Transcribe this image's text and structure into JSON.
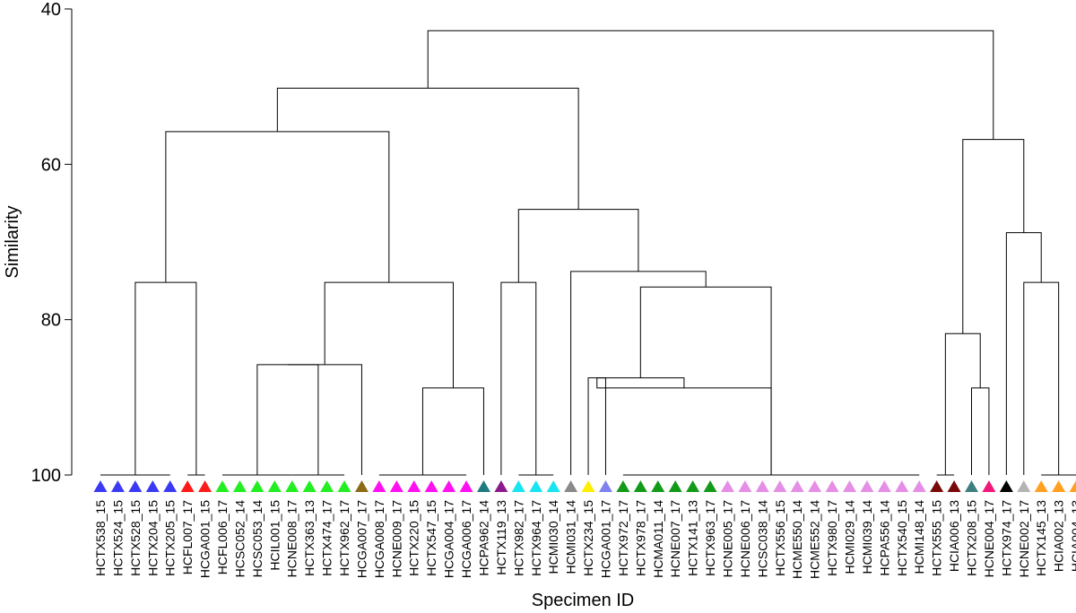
{
  "chart_data": {
    "type": "dendrogram",
    "ylabel": "Similarity",
    "xlabel": "Specimen ID",
    "ylim": [
      40,
      100
    ],
    "yticks": [
      40,
      60,
      80,
      100
    ],
    "y_inverted": true,
    "leaves": [
      {
        "label": "HCTX538_15",
        "color": "#3a3af5"
      },
      {
        "label": "HCTX524_15",
        "color": "#3a3af5"
      },
      {
        "label": "HCTX528_15",
        "color": "#3a3af5"
      },
      {
        "label": "HCTX204_15",
        "color": "#3a3af5"
      },
      {
        "label": "HCTX205_15",
        "color": "#3a3af5"
      },
      {
        "label": "HCFL007_17",
        "color": "#ff1a1a"
      },
      {
        "label": "HCGA001_15",
        "color": "#ff1a1a"
      },
      {
        "label": "HCFL006_17",
        "color": "#22ee22"
      },
      {
        "label": "HCSC052_14",
        "color": "#22ee22"
      },
      {
        "label": "HCSC053_14",
        "color": "#22ee22"
      },
      {
        "label": "HCIL001_15",
        "color": "#22ee22"
      },
      {
        "label": "HCNE008_17",
        "color": "#22ee22"
      },
      {
        "label": "HCTX363_13",
        "color": "#22ee22"
      },
      {
        "label": "HCTX474_17",
        "color": "#22ee22"
      },
      {
        "label": "HCTX962_17",
        "color": "#22ee22"
      },
      {
        "label": "HCGA007_17",
        "color": "#8b6b14"
      },
      {
        "label": "HCGA008_17",
        "color": "#ff10f0"
      },
      {
        "label": "HCNE009_17",
        "color": "#ff10f0"
      },
      {
        "label": "HCTX220_15",
        "color": "#ff10f0"
      },
      {
        "label": "HCTX547_15",
        "color": "#ff10f0"
      },
      {
        "label": "HCGA004_17",
        "color": "#ff10f0"
      },
      {
        "label": "HCGA006_17",
        "color": "#ff10f0"
      },
      {
        "label": "HCPA962_14",
        "color": "#1f7a80"
      },
      {
        "label": "HCTX119_13",
        "color": "#8b1a8b"
      },
      {
        "label": "HCTX982_17",
        "color": "#19e5f0"
      },
      {
        "label": "HCTX964_17",
        "color": "#19e5f0"
      },
      {
        "label": "HCMI030_14",
        "color": "#19e5f0"
      },
      {
        "label": "HCMI031_14",
        "color": "#8a8a8a"
      },
      {
        "label": "HCTX234_15",
        "color": "#ffee00"
      },
      {
        "label": "HCGA001_17",
        "color": "#8080ee"
      },
      {
        "label": "HCTX972_17",
        "color": "#139a19"
      },
      {
        "label": "HCTX978_17",
        "color": "#139a19"
      },
      {
        "label": "HCMA011_14",
        "color": "#139a19"
      },
      {
        "label": "HCNE007_17",
        "color": "#139a19"
      },
      {
        "label": "HCTX141_13",
        "color": "#139a19"
      },
      {
        "label": "HCTX963_17",
        "color": "#139a19"
      },
      {
        "label": "HCNE005_17",
        "color": "#e58ee5"
      },
      {
        "label": "HCNE006_17",
        "color": "#e58ee5"
      },
      {
        "label": "HCSC038_14",
        "color": "#e58ee5"
      },
      {
        "label": "HCTX556_15",
        "color": "#e58ee5"
      },
      {
        "label": "HCME550_14",
        "color": "#e58ee5"
      },
      {
        "label": "HCME552_14",
        "color": "#e58ee5"
      },
      {
        "label": "HCTX980_17",
        "color": "#e58ee5"
      },
      {
        "label": "HCMI029_14",
        "color": "#e58ee5"
      },
      {
        "label": "HCMI039_14",
        "color": "#e58ee5"
      },
      {
        "label": "HCPA556_14",
        "color": "#e58ee5"
      },
      {
        "label": "HCTX540_15",
        "color": "#e58ee5"
      },
      {
        "label": "HCMI148_14",
        "color": "#e58ee5"
      },
      {
        "label": "HCTX555_15",
        "color": "#7a0a0a"
      },
      {
        "label": "HCIA006_13",
        "color": "#7a0a0a"
      },
      {
        "label": "HCTX208_15",
        "color": "#3d7f80"
      },
      {
        "label": "HCNE004_17",
        "color": "#f0187a"
      },
      {
        "label": "HCTX974_17",
        "color": "#000000"
      },
      {
        "label": "HCNE002_17",
        "color": "#b4b4b4"
      },
      {
        "label": "HCTX145_13",
        "color": "#ffa020"
      },
      {
        "label": "HCIA002_13",
        "color": "#ffa020"
      },
      {
        "label": "HCIA004_13",
        "color": "#ffa020"
      }
    ],
    "clusters": [
      {
        "leaves": [
          0,
          1,
          2,
          3,
          4
        ],
        "similarity": 100
      },
      {
        "leaves": [
          5,
          6
        ],
        "similarity": 100
      },
      {
        "leaves": [
          7,
          8,
          9,
          10,
          11
        ],
        "similarity": 100
      },
      {
        "leaves": [
          11,
          12,
          13,
          14
        ],
        "similarity": 100
      },
      {
        "leaves": [
          16,
          17,
          18,
          19,
          20,
          21
        ],
        "similarity": 100
      },
      {
        "leaves": [
          24,
          25,
          26
        ],
        "similarity": 100
      },
      {
        "leaves": [
          30,
          31,
          32,
          33,
          34,
          35,
          36,
          37,
          38,
          39,
          40,
          41,
          42,
          43,
          44,
          45,
          46,
          47
        ],
        "similarity": 100
      },
      {
        "leaves": [
          48,
          49
        ],
        "similarity": 100
      },
      {
        "leaves": [
          54,
          55,
          56
        ],
        "similarity": 100
      }
    ],
    "merges": [
      {
        "left": "c0",
        "right": "c1",
        "similarity": 75.2
      },
      {
        "left": "c2",
        "right": "c3",
        "similarity": 85.8
      },
      {
        "left": "m1",
        "right": "l15",
        "similarity": 85.8
      },
      {
        "left": "c4",
        "right": "l22",
        "similarity": 88.8
      },
      {
        "left": "m2",
        "right": "m3",
        "similarity": 75.2
      },
      {
        "left": "m0",
        "right": "m4",
        "similarity": 55.8
      },
      {
        "left": "l23",
        "right": "c5",
        "similarity": 75.2
      },
      {
        "left": "l28",
        "right": "l29",
        "similarity": 87.5
      },
      {
        "left": "c6",
        "right": "m7",
        "similarity": 88.8
      },
      {
        "left": "m7",
        "right": "m8",
        "similarity": 87.5
      },
      {
        "left": "m9",
        "right": "c6",
        "similarity": 75.8
      },
      {
        "left": "l27",
        "right": "m10",
        "similarity": 73.8
      },
      {
        "left": "m6",
        "right": "m11",
        "similarity": 65.8
      },
      {
        "left": "m5",
        "right": "m12",
        "similarity": 50.2
      },
      {
        "left": "l50",
        "right": "l51",
        "similarity": 88.8
      },
      {
        "left": "c7",
        "right": "m14",
        "similarity": 81.8
      },
      {
        "left": "c8",
        "right": "l53",
        "similarity": 75.2
      },
      {
        "left": "l52",
        "right": "m16",
        "similarity": 68.8
      },
      {
        "left": "m15",
        "right": "m17",
        "similarity": 56.8
      },
      {
        "left": "m13",
        "right": "m18",
        "similarity": 42.8
      }
    ]
  }
}
